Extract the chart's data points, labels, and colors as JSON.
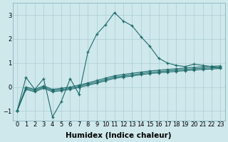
{
  "background_color": "#cfe8ec",
  "line_color": "#1e6b6b",
  "grid_color": "#aacdd4",
  "xlabel": "Humidex (Indice chaleur)",
  "xlabel_fontsize": 7.5,
  "tick_fontsize": 6,
  "xlim": [
    -0.5,
    23.5
  ],
  "ylim": [
    -1.4,
    3.5
  ],
  "yticks": [
    -1,
    0,
    1,
    2,
    3
  ],
  "xticks": [
    0,
    1,
    2,
    3,
    4,
    5,
    6,
    7,
    8,
    9,
    10,
    11,
    12,
    13,
    14,
    15,
    16,
    17,
    18,
    19,
    20,
    21,
    22,
    23
  ],
  "xtick_labels": [
    "0",
    "1",
    "2",
    "3",
    "4",
    "5",
    "6",
    "7",
    "8",
    "9",
    "10",
    "11",
    "12",
    "13",
    "14",
    "15",
    "16",
    "17",
    "18",
    "19",
    "20",
    "21",
    "22",
    "23"
  ],
  "series": [
    {
      "x": [
        0,
        1,
        2,
        3,
        4,
        5,
        6,
        7,
        8,
        9,
        10,
        11,
        12,
        13,
        14,
        15,
        16,
        17,
        18,
        19,
        20,
        21,
        22,
        23
      ],
      "y": [
        -1.0,
        0.4,
        -0.1,
        0.35,
        -1.25,
        -0.6,
        0.35,
        -0.3,
        1.45,
        2.2,
        2.6,
        3.1,
        2.75,
        2.55,
        2.1,
        1.7,
        1.2,
        1.0,
        0.9,
        0.85,
        0.95,
        0.9,
        0.85,
        0.8
      ]
    },
    {
      "x": [
        0,
        1,
        2,
        3,
        4,
        5,
        6,
        7,
        8,
        9,
        10,
        11,
        12,
        13,
        14,
        15,
        16,
        17,
        18,
        19,
        20,
        21,
        22,
        23
      ],
      "y": [
        -1.0,
        0.0,
        -0.1,
        0.05,
        -0.1,
        -0.05,
        0.0,
        0.08,
        0.17,
        0.27,
        0.37,
        0.47,
        0.52,
        0.57,
        0.62,
        0.67,
        0.7,
        0.73,
        0.76,
        0.79,
        0.82,
        0.84,
        0.86,
        0.88
      ]
    },
    {
      "x": [
        0,
        1,
        2,
        3,
        4,
        5,
        6,
        7,
        8,
        9,
        10,
        11,
        12,
        13,
        14,
        15,
        16,
        17,
        18,
        19,
        20,
        21,
        22,
        23
      ],
      "y": [
        -1.0,
        -0.05,
        -0.15,
        0.0,
        -0.15,
        -0.1,
        -0.05,
        0.03,
        0.12,
        0.21,
        0.31,
        0.41,
        0.46,
        0.51,
        0.56,
        0.61,
        0.64,
        0.67,
        0.7,
        0.73,
        0.76,
        0.78,
        0.8,
        0.82
      ]
    },
    {
      "x": [
        0,
        1,
        2,
        3,
        4,
        5,
        6,
        7,
        8,
        9,
        10,
        11,
        12,
        13,
        14,
        15,
        16,
        17,
        18,
        19,
        20,
        21,
        22,
        23
      ],
      "y": [
        -1.0,
        -0.1,
        -0.2,
        -0.05,
        -0.2,
        -0.15,
        -0.1,
        -0.02,
        0.07,
        0.16,
        0.26,
        0.36,
        0.41,
        0.46,
        0.51,
        0.56,
        0.59,
        0.62,
        0.65,
        0.68,
        0.71,
        0.73,
        0.75,
        0.77
      ]
    }
  ]
}
